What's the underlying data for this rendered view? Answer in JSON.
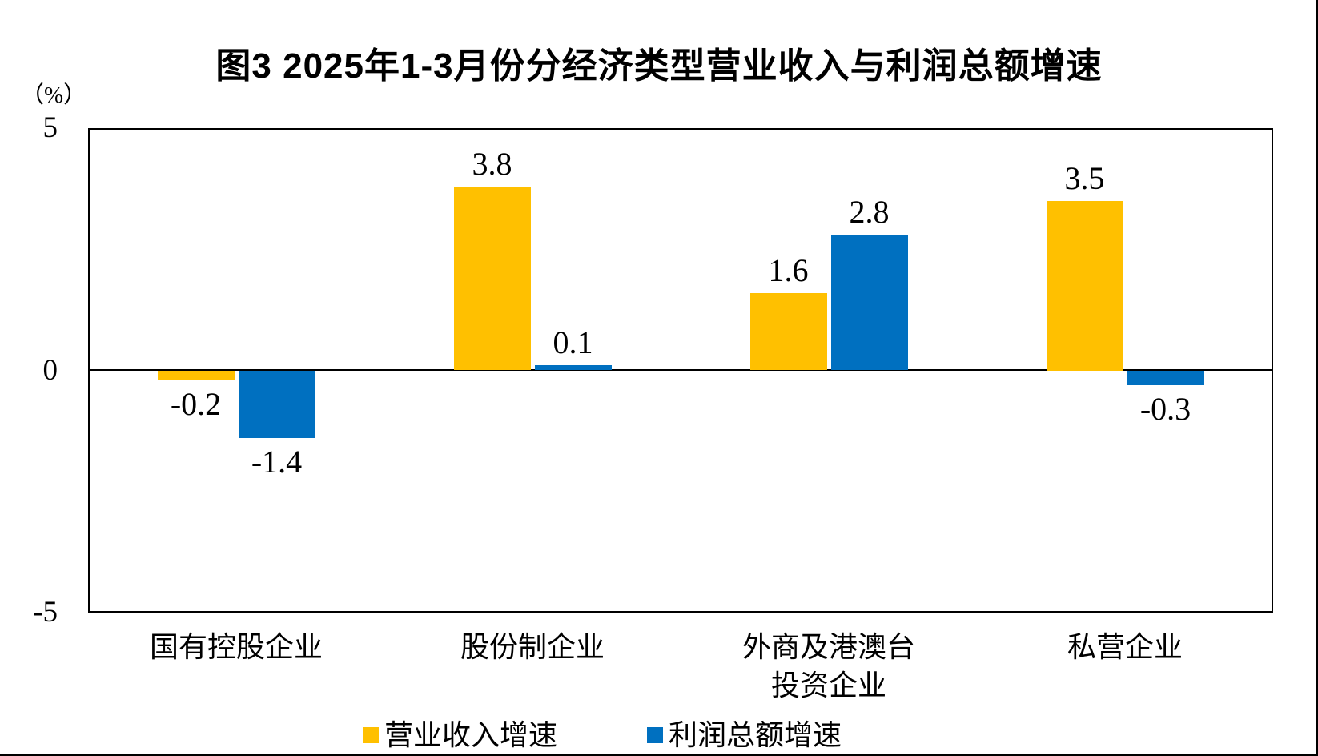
{
  "chart_data": {
    "type": "bar",
    "title": "图3 2025年1-3月份分经济类型营业收入与利润总额增速",
    "ylabel": "（%）",
    "xlabel": "",
    "categories": [
      "国有控股企业",
      "股份制企业",
      "外商及港澳台\n投资企业",
      "私营企业"
    ],
    "series": [
      {
        "name": "营业收入增速",
        "color": "#FFC000",
        "values": [
          -0.2,
          3.8,
          1.6,
          3.5
        ]
      },
      {
        "name": "利润总额增速",
        "color": "#0070C0",
        "values": [
          -1.4,
          0.1,
          2.8,
          -0.3
        ]
      }
    ],
    "data_labels": [
      [
        "-0.2",
        "3.8",
        "1.6",
        "3.5"
      ],
      [
        "-1.4",
        "0.1",
        "2.8",
        "-0.3"
      ]
    ],
    "ylim": [
      -5,
      5
    ],
    "yticks": [
      5,
      0,
      -5
    ],
    "grid": false,
    "legend_position": "bottom",
    "plot_border": true,
    "colors": {
      "axis": "#000000",
      "background": "#ffffff",
      "text": "#000000"
    }
  }
}
